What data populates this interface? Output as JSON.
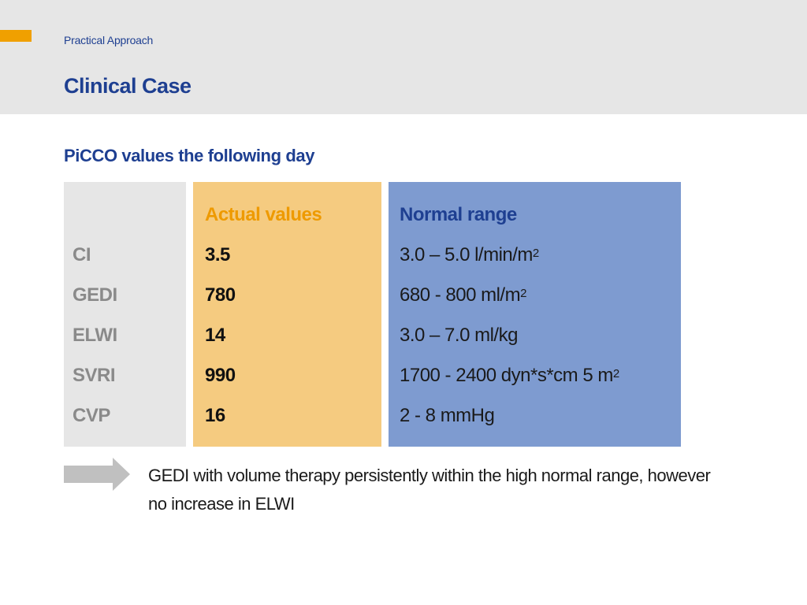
{
  "header": {
    "breadcrumb": "Practical Approach",
    "title": "Clinical Case"
  },
  "section": {
    "title": "PiCCO values the following day"
  },
  "table": {
    "headers": {
      "actual": "Actual values",
      "normal": "Normal range"
    },
    "rows": [
      {
        "label": "CI",
        "actual": "3.5",
        "normal": "3.0 – 5.0 l/min/m",
        "normal_sup": "2"
      },
      {
        "label": "GEDI",
        "actual": "780",
        "normal": "680 - 800 ml/m",
        "normal_sup": "2"
      },
      {
        "label": "ELWI",
        "actual": "14",
        "normal": "3.0 – 7.0 ml/kg",
        "normal_sup": ""
      },
      {
        "label": "SVRI",
        "actual": "990",
        "normal": "1700 - 2400 dyn*s*cm 5 m",
        "normal_sup": "2"
      },
      {
        "label": "CVP",
        "actual": "16",
        "normal": "2 - 8 mmHg",
        "normal_sup": ""
      }
    ]
  },
  "note": {
    "text": "GEDI with volume therapy persistently within the high normal range, however no increase in ELWI"
  },
  "colors": {
    "brand_blue": "#1e3f91",
    "accent_orange": "#f0a000",
    "actual_column": "#f5cb80",
    "normal_column": "#7e9bd0",
    "label_column": "#e6e6e6"
  }
}
